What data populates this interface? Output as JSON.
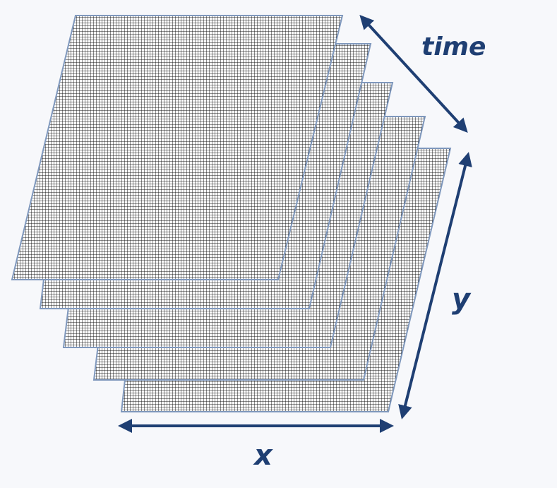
{
  "labels": {
    "time": "time",
    "y": "y",
    "x": "x"
  },
  "colors": {
    "background": "#f7f8fb",
    "grid_line": "#1a1a1a",
    "sheet_fill": "#ffffff",
    "sheet_border": "#7f98bd",
    "accent": "#1f3f73"
  },
  "diagram": {
    "description_type": "stacked-grid-layers",
    "layer_count": 5
  }
}
